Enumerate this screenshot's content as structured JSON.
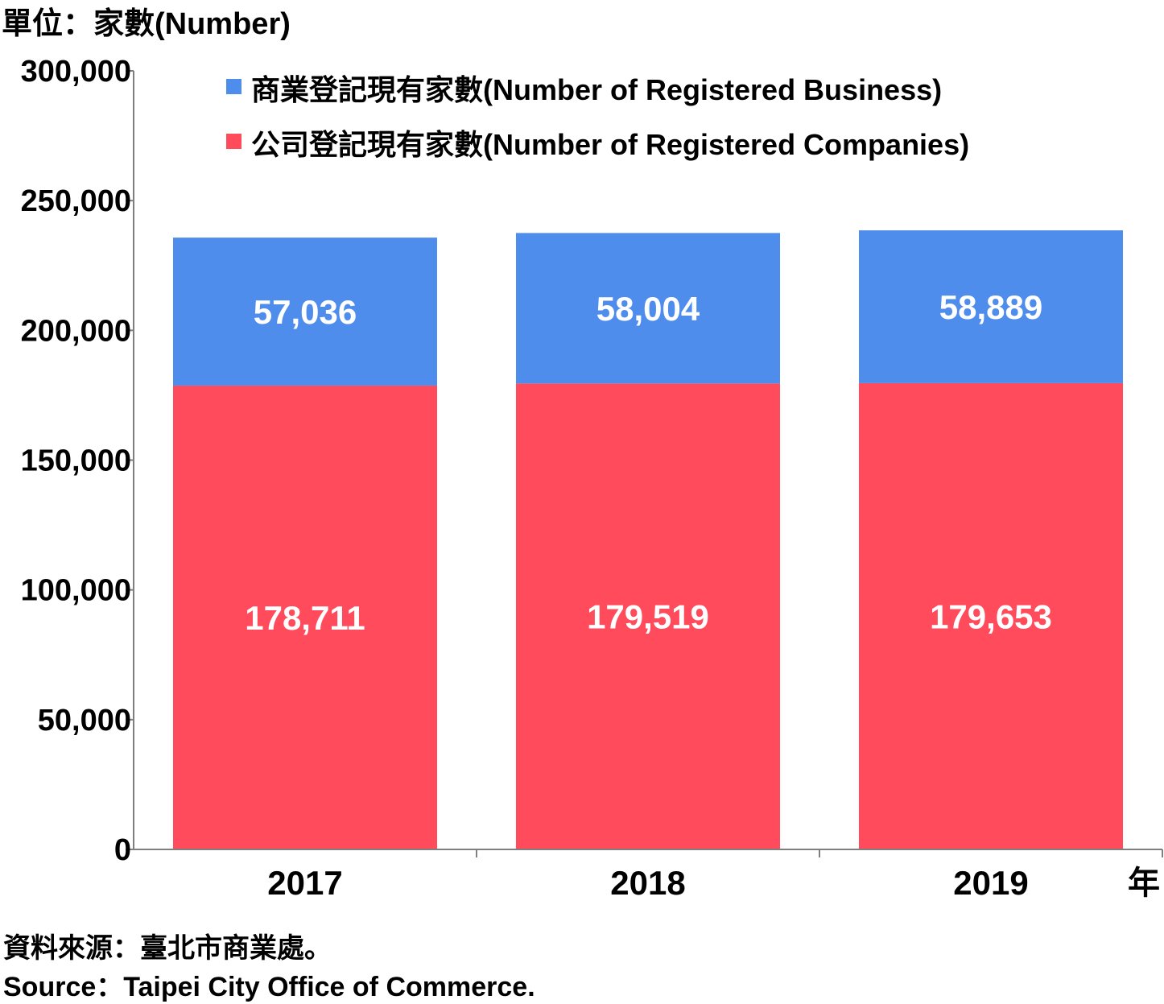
{
  "unit_label": "單位：家數(Number)",
  "x_unit": "年",
  "source_zh": "資料來源：臺北市商業處。",
  "source_en": "Source：Taipei City Office of Commerce.",
  "colors": {
    "business": "#4f8ded",
    "companies": "#ff4b5c",
    "axis": "#7f7f7f"
  },
  "chart_data": {
    "type": "bar",
    "stacked": true,
    "categories": [
      "2017",
      "2018",
      "2019"
    ],
    "series": [
      {
        "name": "公司登記現有家數(Number of Registered Companies)",
        "values": [
          178711,
          179519,
          179653
        ],
        "labels": [
          "178,711",
          "179,519",
          "179,653"
        ]
      },
      {
        "name": "商業登記現有家數(Number of Registered Business)",
        "values": [
          57036,
          58004,
          58889
        ],
        "labels": [
          "57,036",
          "58,004",
          "58,889"
        ]
      }
    ],
    "yticks": [
      "0",
      "50,000",
      "100,000",
      "150,000",
      "200,000",
      "250,000",
      "300,000"
    ],
    "ylim": [
      0,
      300000
    ],
    "legend_position": "top",
    "grid": false
  }
}
